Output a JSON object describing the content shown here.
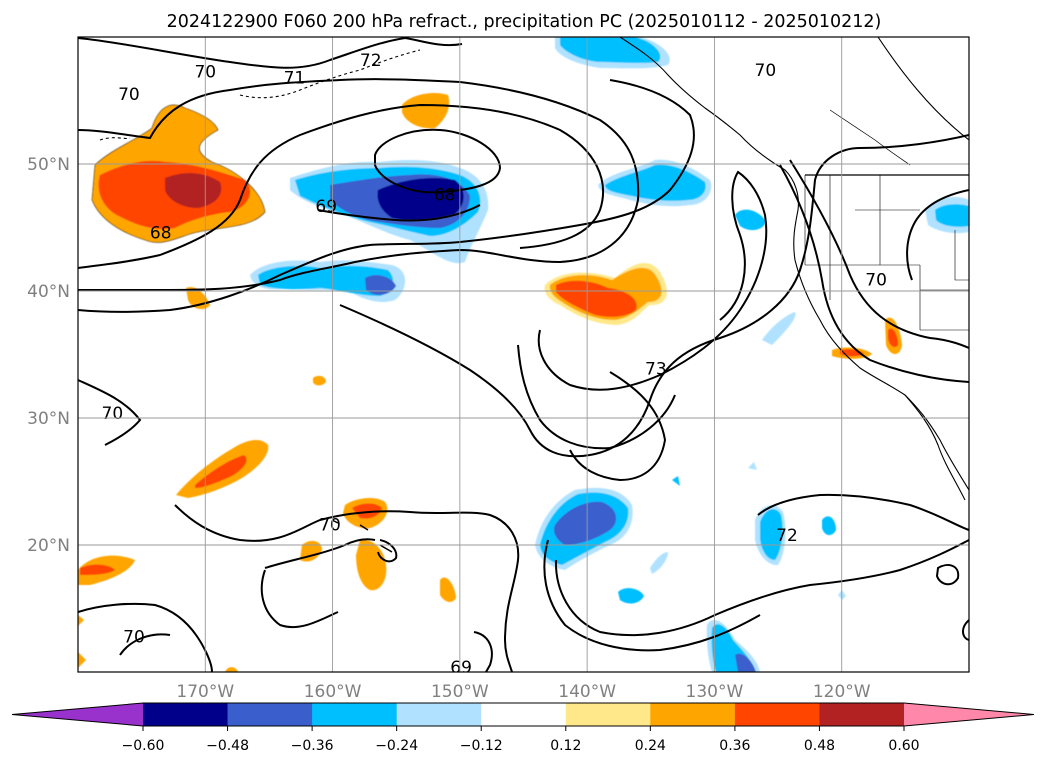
{
  "chart_data": {
    "type": "map-contour",
    "title": "2024122900 F060 200 hPa refract., precipitation PC (2025010112 - 2025010212)",
    "x_ticks": [
      "170°W",
      "160°W",
      "150°W",
      "140°W",
      "130°W",
      "120°W"
    ],
    "x_values": [
      -170,
      -160,
      -150,
      -140,
      -130,
      -120
    ],
    "y_ticks": [
      "50°N",
      "40°N",
      "30°N",
      "20°N"
    ],
    "y_values": [
      50,
      40,
      30,
      20
    ],
    "lon_range": [
      -180,
      -110
    ],
    "lat_range": [
      10,
      60
    ],
    "grid": true,
    "colorbar": {
      "orientation": "horizontal",
      "extend": "both",
      "levels": [
        -0.6,
        -0.48,
        -0.36,
        -0.24,
        -0.12,
        0.12,
        0.24,
        0.36,
        0.48,
        0.6
      ],
      "tick_labels": [
        "−0.60",
        "−0.48",
        "−0.36",
        "−0.24",
        "−0.12",
        "0.12",
        "0.24",
        "0.36",
        "0.48",
        "0.60"
      ],
      "colors": [
        "#9932cc",
        "#00008b",
        "#3a5fcd",
        "#00bfff",
        "#b0e2ff",
        "#ffffff",
        "#ffe88a",
        "#ffa500",
        "#ff4500",
        "#b22222",
        "#ff88aa"
      ]
    },
    "contour_labels": [
      {
        "text": "70",
        "lon": -176,
        "lat": 55.5
      },
      {
        "text": "70",
        "lon": -170,
        "lat": 57.3
      },
      {
        "text": "71",
        "lon": -163,
        "lat": 56.8
      },
      {
        "text": "72",
        "lon": -157,
        "lat": 58.2
      },
      {
        "text": "70",
        "lon": -126,
        "lat": 57.4
      },
      {
        "text": "69",
        "lon": -160.5,
        "lat": 46.7
      },
      {
        "text": "68",
        "lon": -151.2,
        "lat": 47.6
      },
      {
        "text": "68",
        "lon": -173.5,
        "lat": 44.6
      },
      {
        "text": "70",
        "lon": -117.3,
        "lat": 40.9
      },
      {
        "text": "73",
        "lon": -134.6,
        "lat": 33.9
      },
      {
        "text": "70",
        "lon": -177.3,
        "lat": 30.4
      },
      {
        "text": "70",
        "lon": -160.2,
        "lat": 21.6
      },
      {
        "text": "72",
        "lon": -124.3,
        "lat": 20.8
      },
      {
        "text": "70",
        "lon": -175.6,
        "lat": 12.8
      },
      {
        "text": "69",
        "lon": -149.9,
        "lat": 10.4
      }
    ],
    "precip_anomaly_regions": [
      {
        "lon": -172,
        "lat": 48,
        "value": 0.5
      },
      {
        "lon": -175,
        "lat": 47,
        "value": 0.36
      },
      {
        "lon": -153,
        "lat": 47,
        "value": -0.5
      },
      {
        "lon": -160,
        "lat": 46,
        "value": -0.36
      },
      {
        "lon": -162,
        "lat": 40.5,
        "value": -0.24
      },
      {
        "lon": -139,
        "lat": 39.5,
        "value": 0.4
      },
      {
        "lon": -136,
        "lat": 39.5,
        "value": 0.3
      },
      {
        "lon": -168,
        "lat": 25,
        "value": 0.36
      },
      {
        "lon": -141,
        "lat": 22,
        "value": -0.4
      },
      {
        "lon": -156,
        "lat": 21.5,
        "value": 0.3
      },
      {
        "lon": -153,
        "lat": 56,
        "value": 0.3
      },
      {
        "lon": -134,
        "lat": 48,
        "value": -0.3
      },
      {
        "lon": -139,
        "lat": 58.5,
        "value": -0.3
      },
      {
        "lon": -113,
        "lat": 45.5,
        "value": -0.3
      },
      {
        "lon": -126,
        "lat": 20.5,
        "value": -0.3
      },
      {
        "lon": -129,
        "lat": 12,
        "value": -0.36
      },
      {
        "lon": -120,
        "lat": 35.5,
        "value": 0.3
      },
      {
        "lon": -117.5,
        "lat": 37,
        "value": 0.3
      }
    ]
  }
}
